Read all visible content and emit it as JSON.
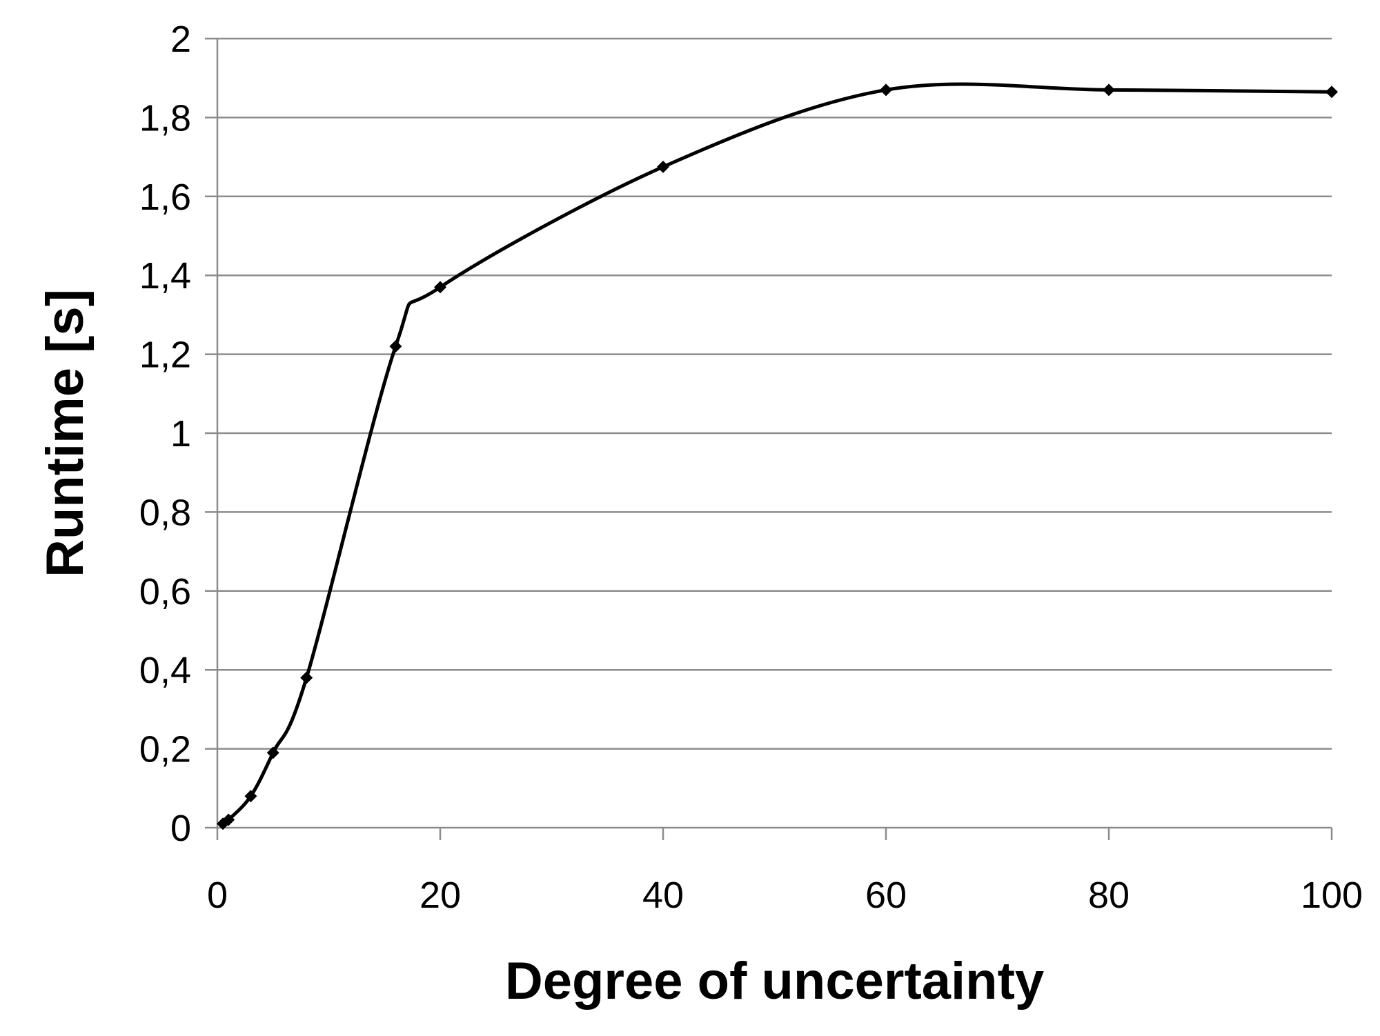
{
  "chart_data": {
    "type": "line",
    "title": "",
    "xlabel": "Degree of uncertainty",
    "ylabel": "Runtime [s]",
    "xlim": [
      0,
      100
    ],
    "ylim": [
      0,
      2
    ],
    "x_ticks": [
      "0",
      "20",
      "40",
      "60",
      "80",
      "100"
    ],
    "y_ticks": [
      "0",
      "0,2",
      "0,4",
      "0,6",
      "0,8",
      "1",
      "1,2",
      "1,4",
      "1,6",
      "1,8",
      "2"
    ],
    "grid": "horizontal",
    "legend": "none",
    "line_style": "smooth",
    "marker": "diamond",
    "colors": {
      "line": "#000000",
      "grid": "#8c8c8c",
      "background": "#ffffff"
    },
    "series": [
      {
        "x": [
          0.5,
          1,
          3,
          5,
          8,
          16,
          20,
          40,
          60,
          80,
          100
        ],
        "y": [
          0.01,
          0.02,
          0.08,
          0.19,
          0.38,
          1.22,
          1.37,
          1.675,
          1.87,
          1.87,
          1.865
        ]
      }
    ]
  }
}
